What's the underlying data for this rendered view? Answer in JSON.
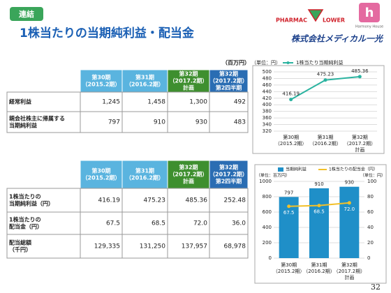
{
  "header": {
    "tag": "連結",
    "title": "1株当たりの当期純利益・配当金",
    "logo_left": [
      "PHARMAC",
      "LOWER"
    ],
    "logo_right": "Harmony House",
    "company": "株式会社メディカル一光"
  },
  "unit_label": "（百万円）",
  "table1": {
    "headers": [
      [
        "第30期",
        "（2015.2期）"
      ],
      [
        "第31期",
        "（2016.2期）"
      ],
      [
        "第32期",
        "（2017.2期）",
        "計画"
      ],
      [
        "第32期",
        "（2017.2期）",
        "第2四半期"
      ]
    ],
    "rows": [
      {
        "label": [
          "経常利益"
        ],
        "values": [
          "1,245",
          "1,458",
          "1,300",
          "492"
        ]
      },
      {
        "label": [
          "親会社株主に帰属する",
          "当期純利益"
        ],
        "values": [
          "797",
          "910",
          "930",
          "483"
        ]
      }
    ]
  },
  "table2": {
    "headers": [
      [
        "第30期",
        "（2015.2期）"
      ],
      [
        "第31期",
        "（2016.2期）"
      ],
      [
        "第32期",
        "（2017.2期）",
        "計画"
      ],
      [
        "第32期",
        "（2017.2期）",
        "第2四半期"
      ]
    ],
    "rows": [
      {
        "label": [
          "1株当たりの",
          "当期純利益（円）"
        ],
        "values": [
          "416.19",
          "475.23",
          "485.36",
          "252.48"
        ]
      },
      {
        "label": [
          "1株当たりの",
          "配当金（円）"
        ],
        "values": [
          "67.5",
          "68.5",
          "72.0",
          "36.0"
        ]
      },
      {
        "label": [
          "配当総額",
          "（千円）"
        ],
        "values": [
          "129,335",
          "131,250",
          "137,957",
          "68,978"
        ]
      }
    ]
  },
  "chart_data": [
    {
      "type": "line",
      "unit": "（単位：円）",
      "categories": [
        [
          "第30期",
          "（2015.2期）"
        ],
        [
          "第31期",
          "（2016.2期）"
        ],
        [
          "第32期",
          "（2017.2期）",
          "計画"
        ]
      ],
      "series": [
        {
          "name": "1株当たり当期純利益",
          "color": "#2bb3a0",
          "values": [
            416.19,
            475.23,
            485.36
          ]
        }
      ],
      "ylim": [
        320,
        500
      ],
      "yticks": [
        320,
        340,
        360,
        380,
        400,
        420,
        440,
        460,
        480,
        500
      ],
      "grid": true
    },
    {
      "type": "bar",
      "unit": "（単位：百万円）",
      "unit2": "（単位：円）",
      "categories": [
        [
          "第30期",
          "（2015.2期）"
        ],
        [
          "第31期",
          "（2016.2期）"
        ],
        [
          "第32期",
          "（2017.2期）",
          "計画"
        ]
      ],
      "series": [
        {
          "name": "当期純利益",
          "color": "#1f8fc8",
          "values": [
            797,
            910,
            930
          ]
        },
        {
          "name": "1株当たりの配当金（円）",
          "color": "#f2c029",
          "axis": "y2",
          "values": [
            67.5,
            68.5,
            72
          ],
          "value_labels": [
            "67.5",
            "68.5",
            "72.0"
          ]
        }
      ],
      "ylim": [
        0,
        1000
      ],
      "yticks": [
        0,
        200,
        400,
        600,
        800,
        1000
      ],
      "y2lim": [
        0,
        100
      ],
      "y2ticks": [
        0,
        20,
        40,
        60,
        80,
        100
      ],
      "grid": true
    }
  ],
  "page_number": "32"
}
